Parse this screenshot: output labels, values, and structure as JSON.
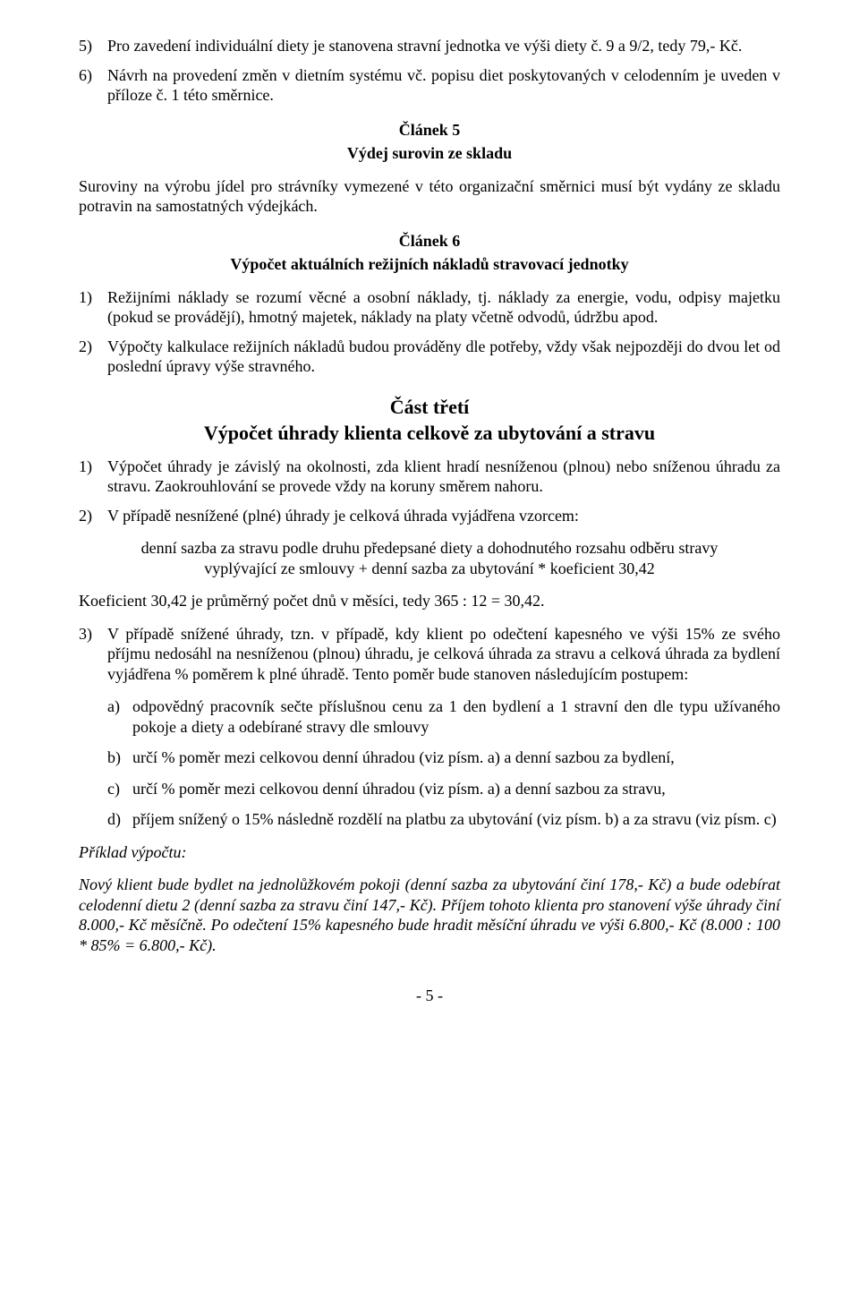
{
  "list_top": [
    {
      "n": "5)",
      "t": "Pro zavedení individuální diety je stanovena stravní jednotka ve výši diety č. 9 a 9/2, tedy 79,- Kč."
    },
    {
      "n": "6)",
      "t": "Návrh na provedení změn v dietním systému vč. popisu diet poskytovaných v celodenním je uveden v příloze č. 1 této směrnice."
    }
  ],
  "art5": {
    "head": "Článek 5",
    "sub": "Výdej surovin ze skladu",
    "para": "Suroviny na výrobu jídel pro strávníky vymezené v této organizační směrnici musí být vydány ze skladu potravin na samostatných výdejkách."
  },
  "art6": {
    "head": "Článek 6",
    "sub": "Výpočet aktuálních režijních nákladů stravovací jednotky",
    "items": [
      {
        "n": "1)",
        "t": "Režijními náklady se rozumí věcné a osobní náklady, tj. náklady za energie, vodu, odpisy majetku (pokud se provádějí), hmotný majetek, náklady na platy včetně odvodů, údržbu apod."
      },
      {
        "n": "2)",
        "t": "Výpočty kalkulace režijních nákladů budou prováděny dle potřeby, vždy však nejpozději do dvou let od poslední úpravy výše stravného."
      }
    ]
  },
  "part3": {
    "head": "Část třetí",
    "sub": "Výpočet úhrady klienta celkově za ubytování a stravu",
    "items12": [
      {
        "n": "1)",
        "t": "Výpočet úhrady je závislý na okolnosti, zda klient hradí nesníženou (plnou) nebo sníženou úhradu za stravu. Zaokrouhlování se provede vždy na koruny směrem nahoru."
      },
      {
        "n": "2)",
        "t": "V případě nesnížené (plné) úhrady je celková úhrada vyjádřena vzorcem:"
      }
    ],
    "formula_l1": "denní sazba za stravu podle druhu předepsané diety a dohodnutého rozsahu odběru stravy",
    "formula_l2": "vyplývající ze smlouvy + denní sazba za ubytování   *   koeficient 30,42",
    "koef": "Koeficient 30,42 je průměrný počet dnů v měsíci, tedy 365 : 12 = 30,42.",
    "item3": {
      "n": "3)",
      "t": "V případě snížené úhrady, tzn. v případě, kdy klient po odečtení kapesného ve výši 15% ze svého příjmu nedosáhl na nesníženou (plnou) úhradu, je celková úhrada za stravu a celková úhrada za bydlení vyjádřena % poměrem k plné úhradě. Tento poměr bude stanoven následujícím postupem:"
    },
    "letters": [
      {
        "n": "a)",
        "t": "odpovědný pracovník sečte příslušnou cenu za 1 den bydlení a 1 stravní den dle typu užívaného pokoje a diety a odebírané stravy dle smlouvy"
      },
      {
        "n": "b)",
        "t": "určí % poměr mezi celkovou denní úhradou (viz písm. a) a denní sazbou za bydlení,"
      },
      {
        "n": "c)",
        "t": "určí % poměr mezi celkovou denní úhradou (viz písm. a) a denní sazbou za stravu,"
      },
      {
        "n": "d)",
        "t": "příjem snížený o 15% následně rozdělí na platbu za ubytování (viz písm. b) a za stravu (viz písm. c)"
      }
    ],
    "example_label": "Příklad výpočtu:",
    "example_text": "Nový klient bude bydlet na jednolůžkovém pokoji (denní sazba za ubytování činí 178,- Kč) a bude odebírat celodenní dietu 2 (denní sazba za stravu činí 147,- Kč). Příjem tohoto klienta pro stanovení výše úhrady činí 8.000,- Kč měsíčně. Po odečtení 15% kapesného bude hradit měsíční úhradu ve výši 6.800,- Kč (8.000 : 100 * 85% = 6.800,- Kč)."
  },
  "footer": "- 5 -"
}
